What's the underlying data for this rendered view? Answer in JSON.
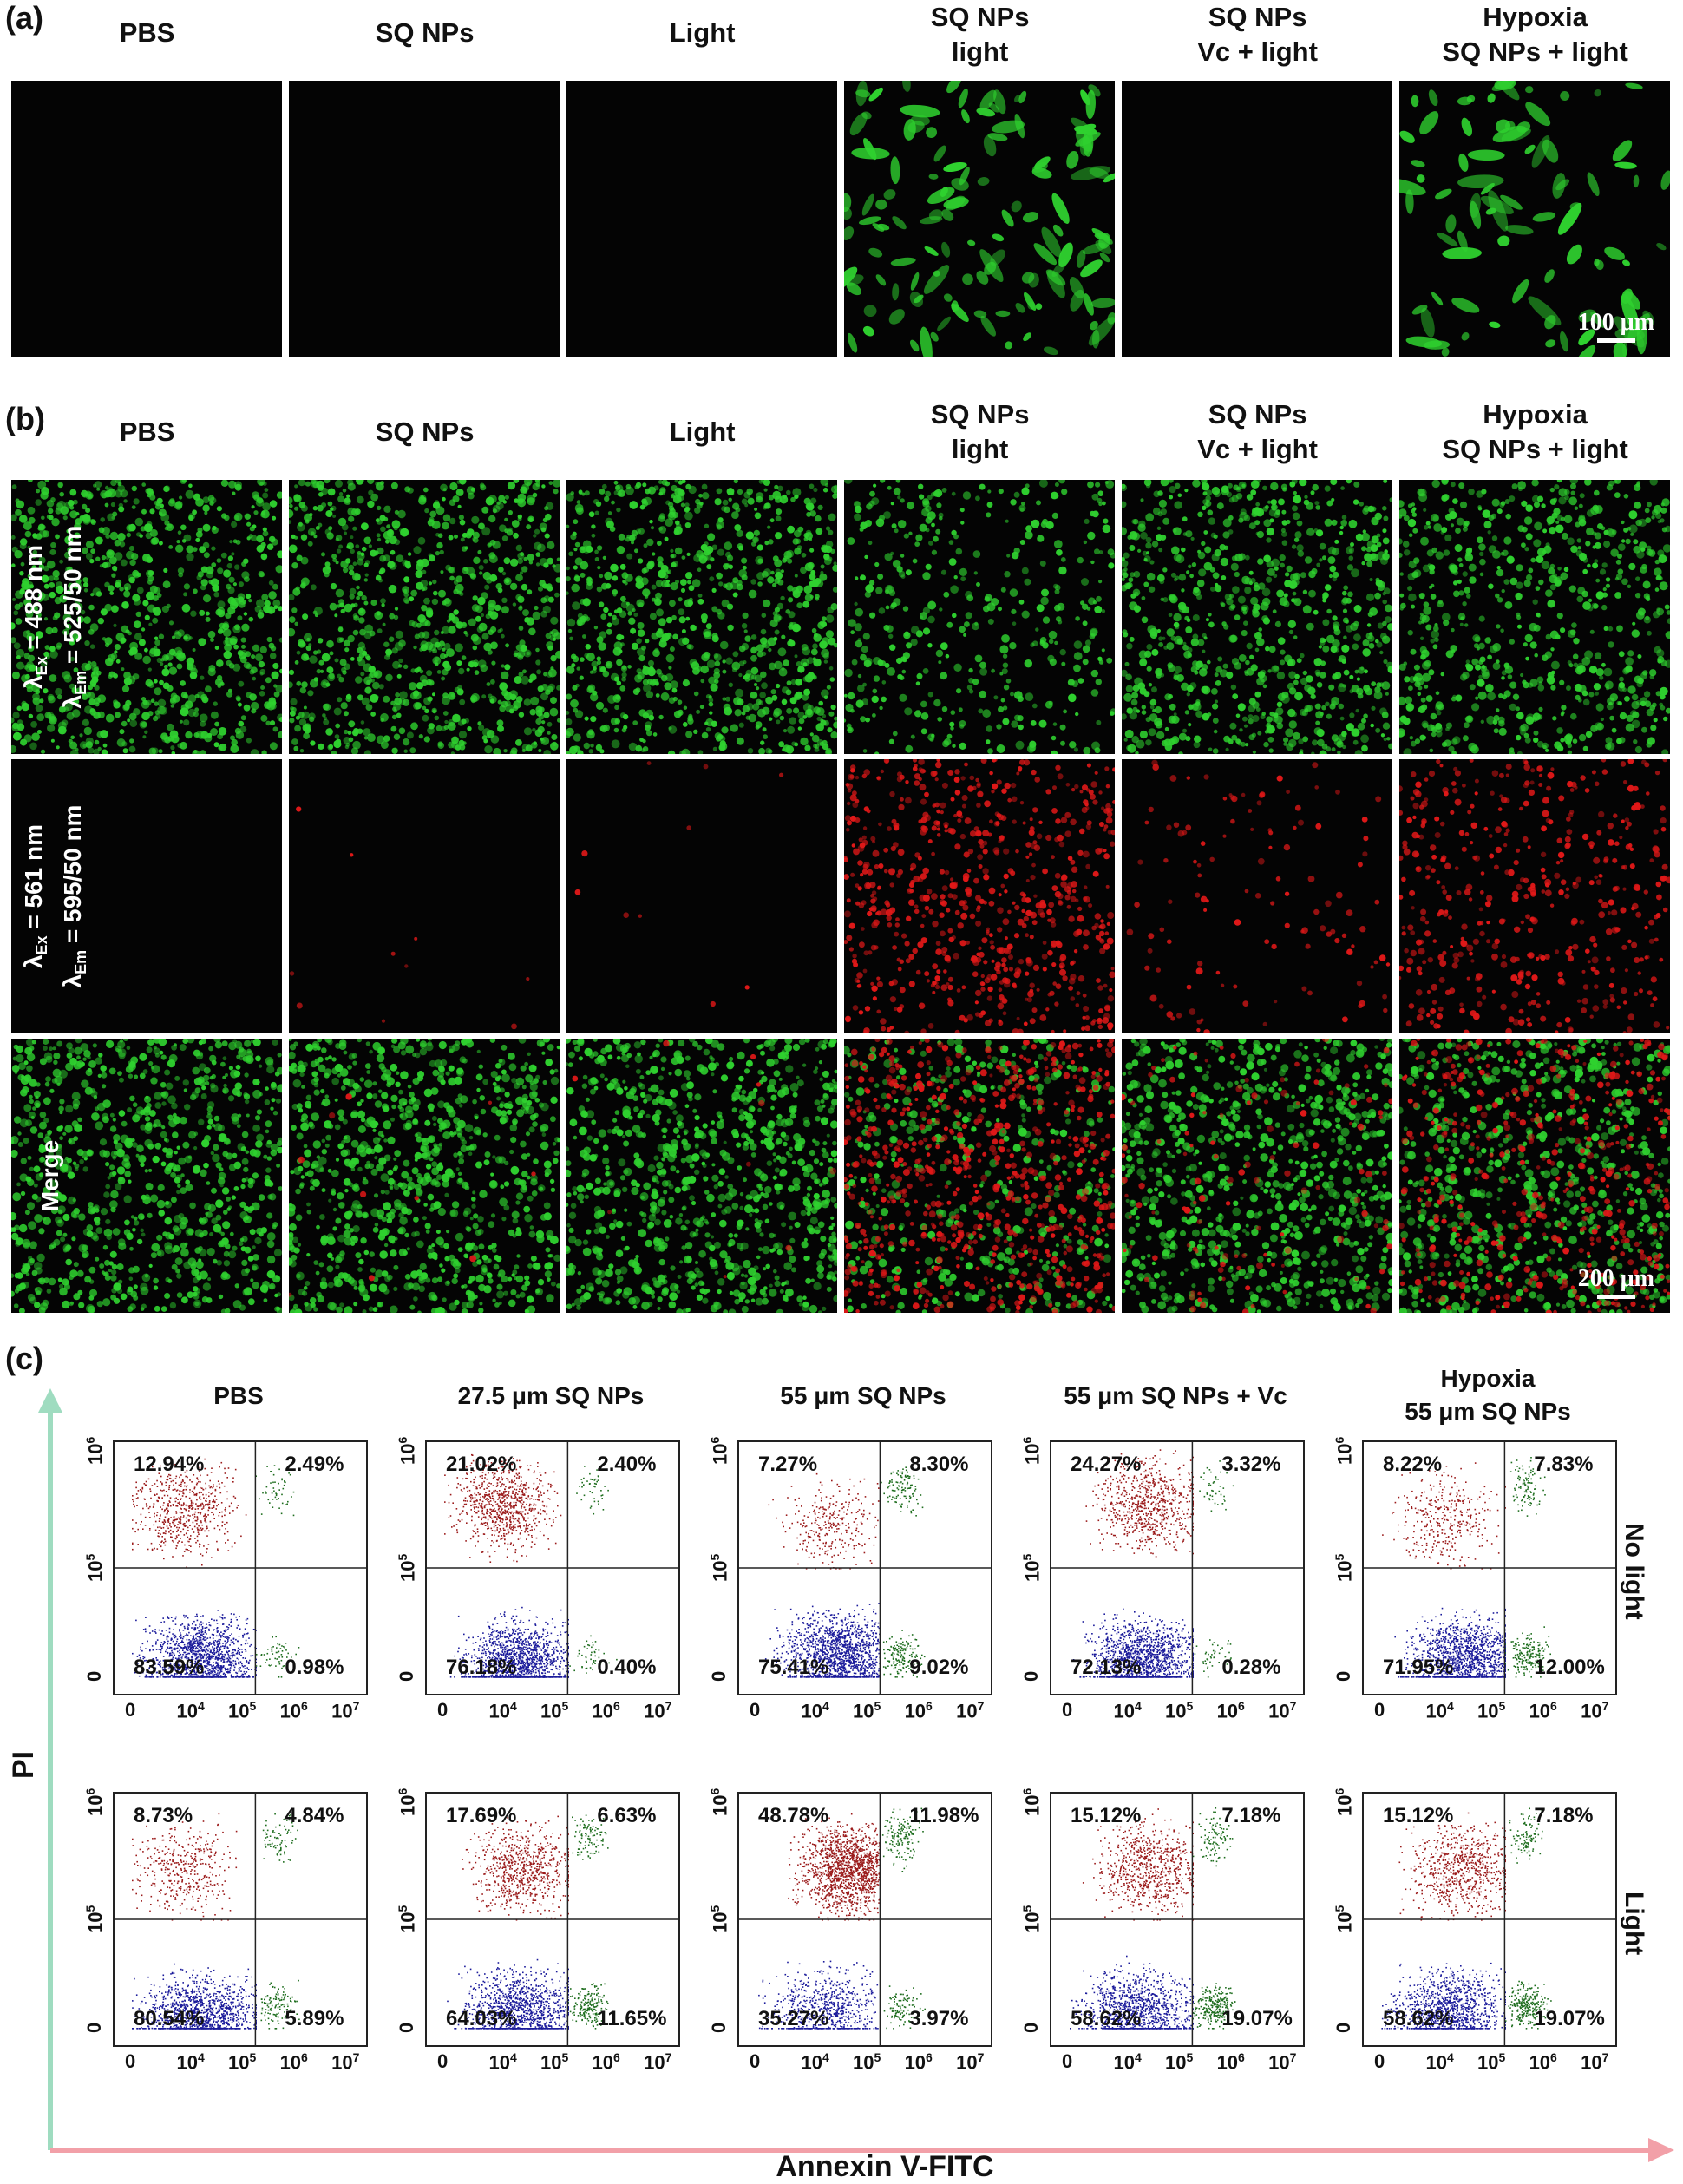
{
  "panel_a": {
    "label": "(a)",
    "columns": [
      "PBS",
      "SQ NPs",
      "Light",
      "SQ NPs\nlight",
      "SQ NPs\nVc + light",
      "Hypoxia\nSQ NPs + light"
    ],
    "scale_bar": "100 μm"
  },
  "panel_b": {
    "label": "(b)",
    "columns": [
      "PBS",
      "SQ NPs",
      "Light",
      "SQ NPs\nlight",
      "SQ NPs\nVc + light",
      "Hypoxia\nSQ NPs + light"
    ],
    "rows": [
      {
        "line1": "λ",
        "sub1": "Ex",
        "rest1": " = 488 nm",
        "line2": "λ",
        "sub2": "Em",
        "rest2": " = 525/50 nm"
      },
      {
        "line1": "λ",
        "sub1": "Ex",
        "rest1": " = 561 nm",
        "line2": "λ",
        "sub2": "Em",
        "rest2": " = 595/50 nm"
      },
      {
        "line1": "Merge"
      }
    ],
    "scale_bar": "200 μm"
  },
  "panel_c": {
    "label": "(c)",
    "columns": [
      "PBS",
      "27.5 μm SQ NPs",
      "55 μm SQ NPs",
      "55 μm SQ NPs + Vc",
      "Hypoxia\n55 μm SQ NPs"
    ],
    "row_labels": [
      "No light",
      "Light"
    ],
    "y_axis": "PI",
    "x_axis": "Annexin V-FITC",
    "x_ticks": [
      "0",
      "10",
      "10",
      "10",
      "10"
    ],
    "x_tick_exp": [
      "",
      "4",
      "5",
      "6",
      "7"
    ],
    "y_ticks": [
      "0",
      "10",
      "10"
    ],
    "y_tick_exp": [
      "",
      "5",
      "6"
    ],
    "plots": [
      [
        {
          "ul": "12.94%",
          "ur": "2.49%",
          "ll": "83.59%",
          "lr": "0.98%"
        },
        {
          "ul": "21.02%",
          "ur": "2.40%",
          "ll": "76.18%",
          "lr": "0.40%"
        },
        {
          "ul": "7.27%",
          "ur": "8.30%",
          "ll": "75.41%",
          "lr": "9.02%"
        },
        {
          "ul": "24.27%",
          "ur": "3.32%",
          "ll": "72.13%",
          "lr": "0.28%"
        },
        {
          "ul": "8.22%",
          "ur": "7.83%",
          "ll": "71.95%",
          "lr": "12.00%"
        }
      ],
      [
        {
          "ul": "8.73%",
          "ur": "4.84%",
          "ll": "80.54%",
          "lr": "5.89%"
        },
        {
          "ul": "17.69%",
          "ur": "6.63%",
          "ll": "64.03%",
          "lr": "11.65%"
        },
        {
          "ul": "48.78%",
          "ur": "11.98%",
          "ll": "35.27%",
          "lr": "3.97%"
        },
        {
          "ul": "15.12%",
          "ur": "7.18%",
          "ll": "58.62%",
          "lr": "19.07%"
        },
        {
          "ul": "15.12%",
          "ur": "7.18%",
          "ll": "58.62%",
          "lr": "19.07%"
        }
      ]
    ],
    "colors": {
      "upper_left": "#9b1b1b",
      "lower_left": "#1b1b9b",
      "right": "#1f6e1f",
      "y_arrow": "#9fdcc0",
      "x_arrow": "#f2a0a8"
    }
  },
  "colors": {
    "green_cell": "#2fd12f",
    "red_cell": "#e01818",
    "tile_bg": "#040404"
  }
}
